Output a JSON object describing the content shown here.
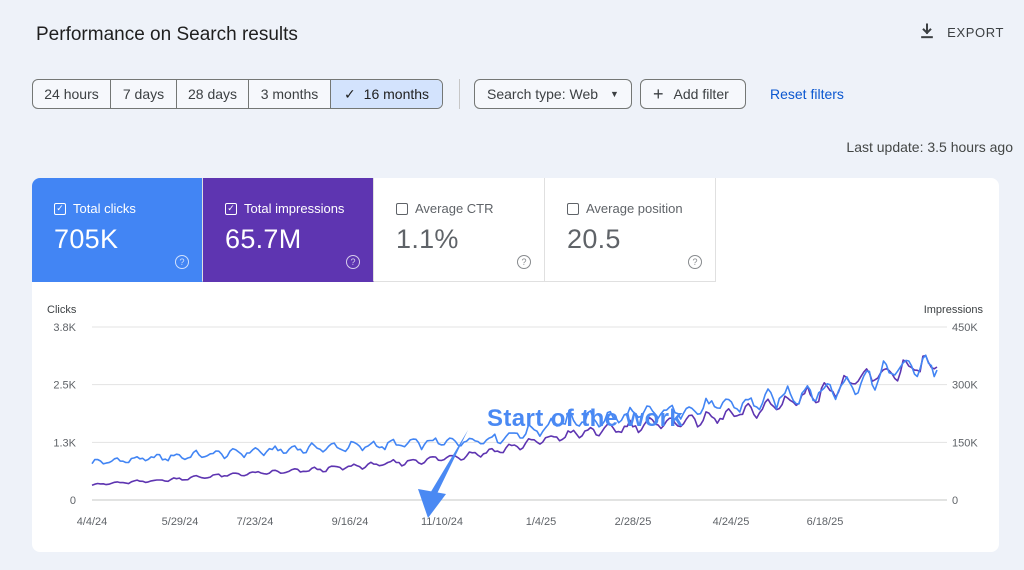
{
  "header": {
    "title": "Performance on Search results",
    "export_label": "EXPORT"
  },
  "toolbar": {
    "date_ranges": [
      {
        "label": "24 hours",
        "active": false
      },
      {
        "label": "7 days",
        "active": false
      },
      {
        "label": "28 days",
        "active": false
      },
      {
        "label": "3 months",
        "active": false
      },
      {
        "label": "16 months",
        "active": true
      }
    ],
    "search_type": "Search type: Web",
    "add_filter": "Add filter",
    "reset_filters": "Reset filters"
  },
  "last_update": "Last update: 3.5 hours ago",
  "metrics": [
    {
      "label": "Total clicks",
      "value": "705K",
      "checked": true
    },
    {
      "label": "Total impressions",
      "value": "65.7M",
      "checked": true
    },
    {
      "label": "Average CTR",
      "value": "1.1%",
      "checked": false
    },
    {
      "label": "Average position",
      "value": "20.5",
      "checked": false
    }
  ],
  "colors": {
    "clicks": "#4285f4",
    "impressions": "#5e35b1",
    "annotation": "#4a89f3"
  },
  "chart_data": {
    "type": "line",
    "left_axis_label": "Clicks",
    "right_axis_label": "Impressions",
    "left_ticks": [
      "0",
      "1.3K",
      "2.5K",
      "3.8K"
    ],
    "right_ticks": [
      "0",
      "150K",
      "300K",
      "450K"
    ],
    "left_ylim": [
      0,
      3800
    ],
    "right_ylim": [
      0,
      450000
    ],
    "x_labels": [
      "4/4/24",
      "5/29/24",
      "7/23/24",
      "9/16/24",
      "11/10/24",
      "1/4/25",
      "2/28/25",
      "4/24/25",
      "6/18/25"
    ],
    "annotation": "Start of the work",
    "series": [
      {
        "name": "Clicks",
        "axis": "left",
        "values": [
          820,
          880,
          940,
          990,
          1040,
          1090,
          1140,
          1170,
          1210,
          1250,
          1290,
          1350,
          1530,
          1750,
          1780,
          1900,
          1960,
          2070,
          2120,
          2310,
          2400,
          2630,
          2900,
          3000
        ]
      },
      {
        "name": "Impressions",
        "axis": "right",
        "values": [
          40000,
          46000,
          52000,
          60000,
          67000,
          72000,
          78000,
          86000,
          94000,
          103000,
          114000,
          128000,
          150000,
          170000,
          182000,
          196000,
          204000,
          214000,
          232000,
          258000,
          286000,
          316000,
          338000,
          355000
        ]
      }
    ]
  }
}
